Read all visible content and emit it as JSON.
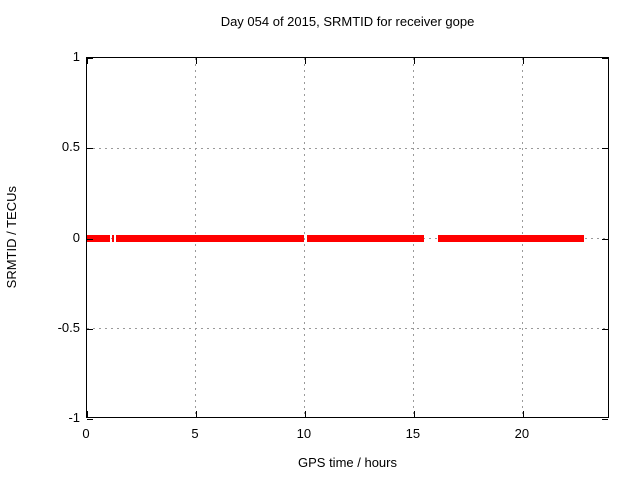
{
  "chart_data": {
    "type": "line",
    "title": "Day 054 of 2015, SRMTID for receiver gope",
    "xlabel": "GPS time / hours",
    "ylabel": "SRMTID / TECUs",
    "xlim": [
      0,
      24
    ],
    "ylim": [
      -1,
      1
    ],
    "grid": true,
    "legend": "none",
    "xticks": [
      {
        "v": 0,
        "label": "0"
      },
      {
        "v": 5,
        "label": "5"
      },
      {
        "v": 10,
        "label": "10"
      },
      {
        "v": 15,
        "label": "15"
      },
      {
        "v": 20,
        "label": "20"
      }
    ],
    "yticks": [
      {
        "v": -1,
        "label": "-1"
      },
      {
        "v": -0.5,
        "label": "-0.5"
      },
      {
        "v": 0,
        "label": "0"
      },
      {
        "v": 0.5,
        "label": "0.5"
      },
      {
        "v": 1,
        "label": "1"
      }
    ],
    "series": [
      {
        "name": "SRMTID",
        "color": "#ff0000",
        "y_value": 0,
        "x_segments_hours": [
          [
            0.0,
            1.05
          ],
          [
            1.15,
            1.25
          ],
          [
            1.35,
            9.95
          ],
          [
            10.1,
            15.45
          ],
          [
            16.1,
            22.8
          ]
        ]
      }
    ],
    "colors": {
      "background": "#ffffff",
      "border": "#000000",
      "grid": "#9a9a9a",
      "text": "#000000",
      "series": "#ff0000"
    }
  }
}
